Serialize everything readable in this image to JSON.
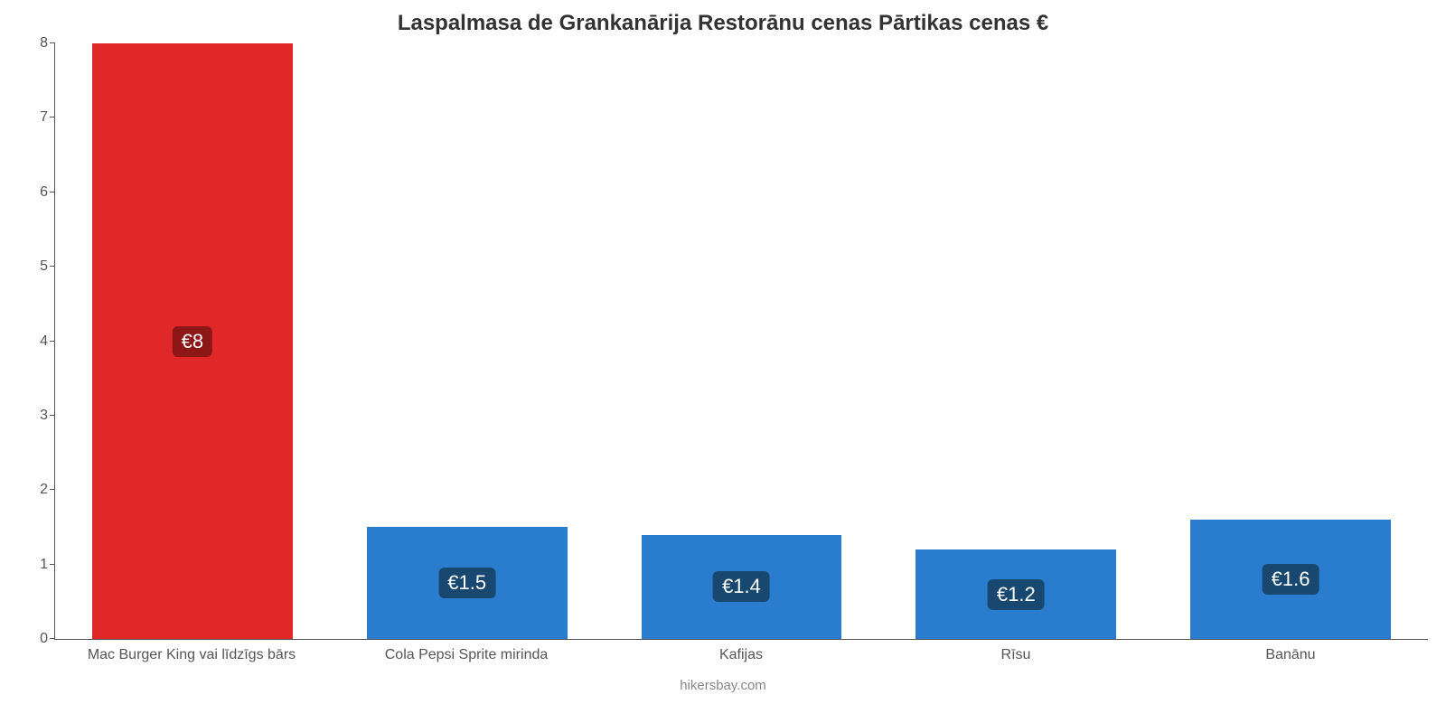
{
  "chart": {
    "type": "bar",
    "title": "Laspalmasa de Grankanārija Restorānu cenas Pārtikas cenas €",
    "title_fontsize": 24,
    "title_color": "#333333",
    "background_color": "#ffffff",
    "axis_color": "#555555",
    "label_color": "#555555",
    "label_fontsize": 16,
    "ylim": [
      0,
      8
    ],
    "yticks": [
      0,
      1,
      2,
      3,
      4,
      5,
      6,
      7,
      8
    ],
    "bar_width": 0.73,
    "categories": [
      "Mac Burger King vai līdzīgs bārs",
      "Cola Pepsi Sprite mirinda",
      "Kafijas",
      "Rīsu",
      "Banānu"
    ],
    "values": [
      8,
      1.5,
      1.4,
      1.2,
      1.6
    ],
    "value_labels": [
      "€8",
      "€1.5",
      "€1.4",
      "€1.2",
      "€1.6"
    ],
    "bar_colors": [
      "#e02828",
      "#2a7ccf",
      "#2a7ccf",
      "#2a7ccf",
      "#2a7ccf"
    ],
    "value_label_bg": [
      "#8d1717",
      "#18486f",
      "#18486f",
      "#18486f",
      "#18486f"
    ],
    "value_label_color": "#ffffff",
    "value_label_fontsize": 22,
    "credit": "hikersbay.com",
    "credit_color": "#888888"
  }
}
